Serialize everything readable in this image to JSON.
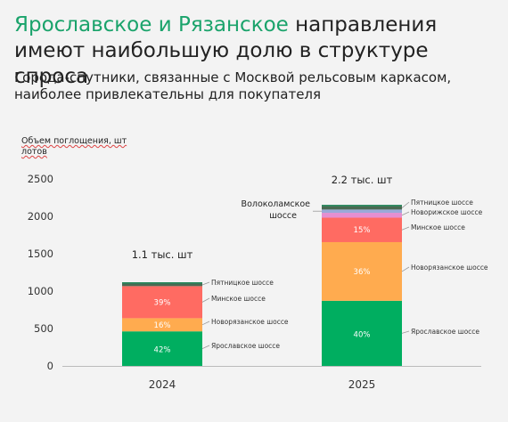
{
  "header": {
    "title_accent": "Ярославское и Рязанское",
    "title_rest": " направления имеют наибольшую долю в структуре спроса",
    "subtitle": "Города-спутники, связанные с Москвой рельсовым каркасом, наиболее привлекательны для покупателя"
  },
  "colors": {
    "accent": "#1aa36b",
    "yaroslavskoe": "#00ae60",
    "novoryazanskoe": "#ffab4f",
    "minskoe": "#ff6b62",
    "novorizhskoe": "#e58fd0",
    "pyatnitskoe": "#4a6a52",
    "volokolamskoe": "#9aa9d8",
    "top_green": "#0f7a4a"
  },
  "chart_data": {
    "type": "bar",
    "stacked": true,
    "ylabel": "Объем поглощения, шт лотов",
    "ylim": [
      0,
      2500
    ],
    "yticks": [
      0,
      500,
      1000,
      1500,
      2000,
      2500
    ],
    "categories": [
      "2024",
      "2025"
    ],
    "totals_labels": [
      "1.1 тыс. шт",
      "2.2 тыс. шт"
    ],
    "series": [
      {
        "name": "Ярославское шоссе",
        "color": "#00ae60",
        "values": [
          462,
          871
        ],
        "labels": [
          "42%",
          "40%"
        ]
      },
      {
        "name": "Новорязанское шоссе",
        "color": "#ffab4f",
        "values": [
          176,
          784
        ],
        "labels": [
          "16%",
          "36%"
        ]
      },
      {
        "name": "Минское шоссе",
        "color": "#ff6b62",
        "values": [
          429,
          327
        ],
        "labels": [
          "39%",
          "15%"
        ]
      },
      {
        "name": "Новорижское шоссе",
        "color": "#e58fd0",
        "values": [
          0,
          65
        ],
        "labels": [
          "",
          ""
        ]
      },
      {
        "name": "Волоколамское шоссе",
        "color": "#9aa9d8",
        "values": [
          0,
          44
        ],
        "labels": [
          "",
          ""
        ]
      },
      {
        "name": "Пятницкое шоссе",
        "color": "#4a6a52",
        "values": [
          33,
          44
        ],
        "labels": [
          "",
          ""
        ]
      }
    ],
    "annotations": {
      "2024": [
        "Ярославское шоссе",
        "Новорязанское шоссе",
        "Минское шоссе",
        "Пятницкое шоссе"
      ],
      "2025": [
        "Ярославское шоссе",
        "Новорязанское шоссе",
        "Минское шоссе",
        "Новорижское шоссе",
        "Волоколамское шоссе",
        "Пятницкое шоссе"
      ]
    },
    "volokolamskoe_label": "Волоколамское шоссе"
  }
}
